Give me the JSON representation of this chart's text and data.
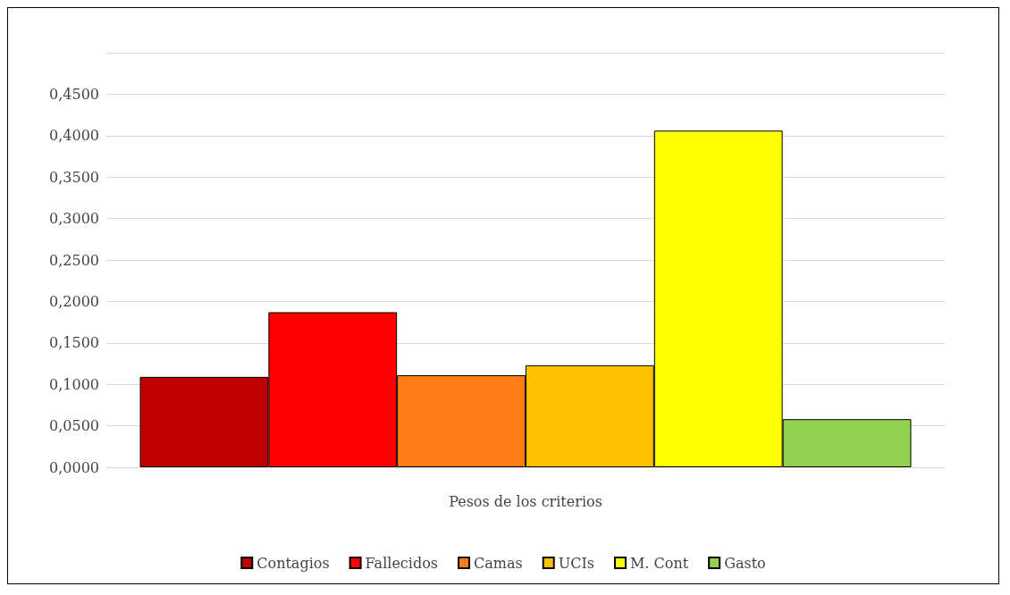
{
  "chart_data": {
    "type": "bar",
    "xlabel": "Pesos de los criterios",
    "categories": [
      null
    ],
    "series": [
      {
        "name": "Contagios",
        "color": "#c00000",
        "values": [
          0.109
        ]
      },
      {
        "name": "Fallecidos",
        "color": "#ff0000",
        "values": [
          0.187
        ]
      },
      {
        "name": "Camas",
        "color": "#ff7c17",
        "values": [
          0.111
        ]
      },
      {
        "name": "UCIs",
        "color": "#ffc000",
        "values": [
          0.123
        ]
      },
      {
        "name": "M. Cont",
        "color": "#ffff00",
        "values": [
          0.406
        ]
      },
      {
        "name": "Gasto",
        "color": "#92d050",
        "values": [
          0.058
        ]
      }
    ],
    "ylim": [
      0,
      0.5
    ],
    "yticks": [
      {
        "value": 0,
        "label": "0,0000"
      },
      {
        "value": 0.05,
        "label": "0,0500"
      },
      {
        "value": 0.1,
        "label": "0,1000"
      },
      {
        "value": 0.15,
        "label": "0,1500"
      },
      {
        "value": 0.2,
        "label": "0,2000"
      },
      {
        "value": 0.25,
        "label": "0,2500"
      },
      {
        "value": 0.3,
        "label": "0,3000"
      },
      {
        "value": 0.35,
        "label": "0,3500"
      },
      {
        "value": 0.4,
        "label": "0,4000"
      },
      {
        "value": 0.45,
        "label": "0,4500"
      },
      {
        "value": 0.5,
        "label": null
      }
    ],
    "grid": "y",
    "legend": "bottom"
  }
}
